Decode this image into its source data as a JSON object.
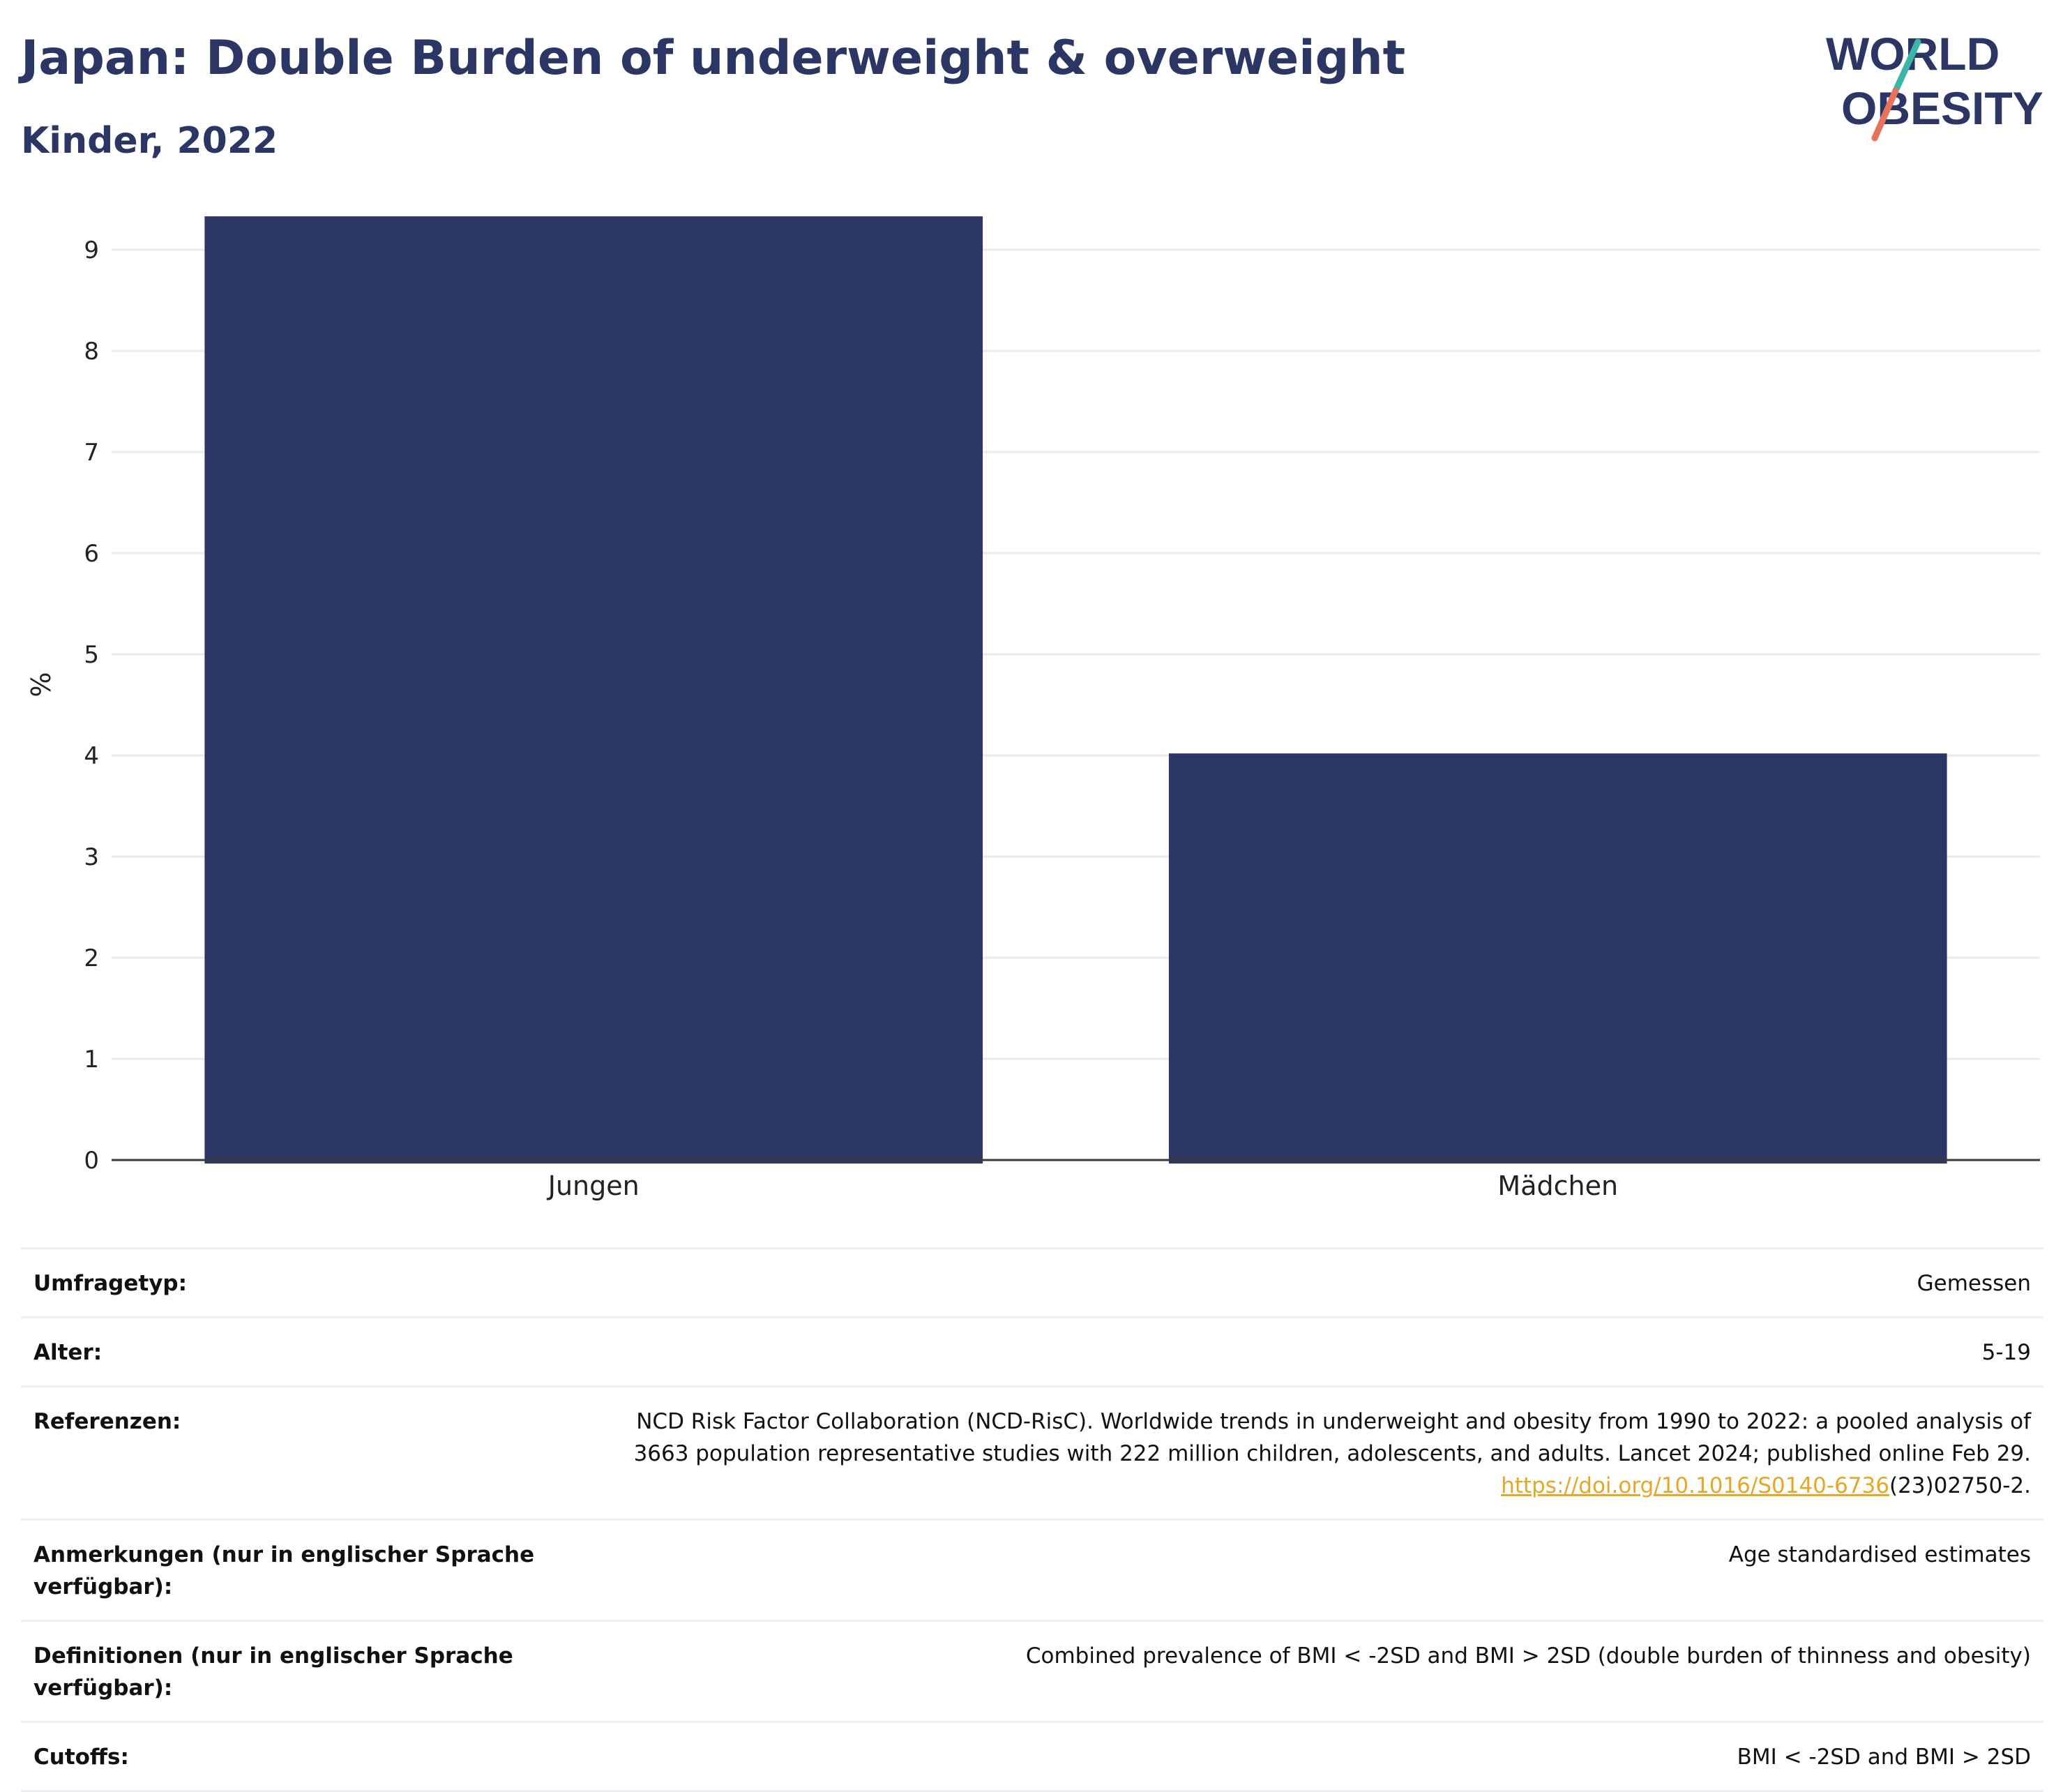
{
  "header": {
    "title": "Japan: Double Burden of underweight & overweight",
    "subtitle": "Kinder, 2022"
  },
  "logo": {
    "line1": "WORLD",
    "line2": "OBESITY",
    "colors": {
      "text": "#2b3664",
      "slash_top": "#3bb5a8",
      "slash_bottom": "#e8725a"
    }
  },
  "chart_data": {
    "type": "bar",
    "categories": [
      "Jungen",
      "Mädchen"
    ],
    "values": [
      9.33,
      4.02
    ],
    "title": "",
    "xlabel": "",
    "ylabel": "%",
    "ylim": [
      0,
      9.4
    ],
    "yticks": [
      0,
      1,
      2,
      3,
      4,
      5,
      6,
      7,
      8,
      9
    ],
    "grid": true,
    "bar_color": "#2b3664"
  },
  "meta": {
    "survey_type": {
      "label": "Umfragetyp:",
      "value": "Gemessen"
    },
    "age": {
      "label": "Alter:",
      "value": "5-19"
    },
    "references": {
      "label": "Referenzen:",
      "line1": "NCD Risk Factor Collaboration (NCD-RisC). Worldwide trends in underweight and obesity from 1990 to 2022: a pooled analysis of",
      "line2": "3663 population representative studies with 222 million children, adolescents, and adults. Lancet 2024; published online Feb 29.",
      "link_text": "https://doi.org/10.1016/S0140-6736",
      "link_suffix": "(23)02750-2."
    },
    "notes": {
      "label": "Anmerkungen (nur in englischer Sprache verfügbar):",
      "value": "Age standardised estimates"
    },
    "definitions": {
      "label": "Definitionen (nur in englischer Sprache verfügbar):",
      "value": "Combined prevalence of BMI < -2SD and BMI > 2SD (double burden of thinness and obesity)"
    },
    "cutoffs": {
      "label": "Cutoffs:",
      "value": "BMI < -2SD and BMI > 2SD"
    }
  }
}
